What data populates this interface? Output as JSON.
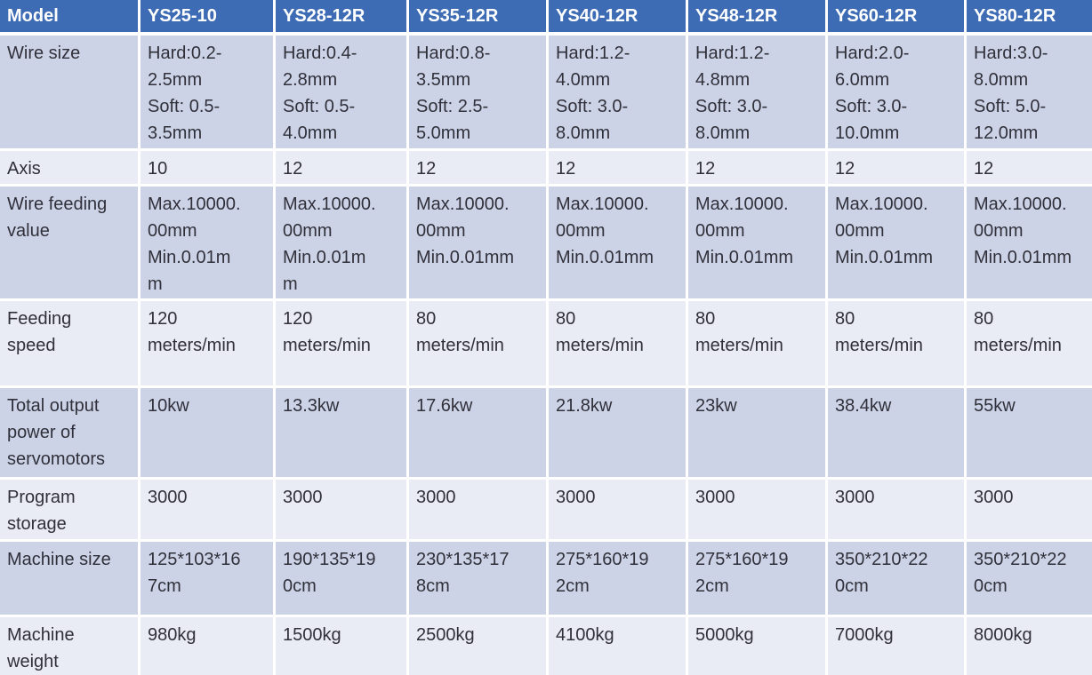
{
  "table": {
    "columns": [
      "Model",
      "YS25-10",
      "YS28-12R",
      "YS35-12R",
      "YS40-12R",
      "YS48-12R",
      "YS60-12R",
      "YS80-12R"
    ],
    "rows": [
      {
        "label": "Wire size",
        "values": [
          "Hard:0.2-\n2.5mm\nSoft: 0.5-\n3.5mm",
          "Hard:0.4-\n2.8mm\nSoft: 0.5-\n4.0mm",
          "Hard:0.8-\n3.5mm\nSoft: 2.5-\n5.0mm",
          "Hard:1.2-\n4.0mm\nSoft: 3.0-\n8.0mm",
          "Hard:1.2-\n4.8mm\nSoft: 3.0-\n8.0mm",
          "Hard:2.0-\n6.0mm\nSoft: 3.0-\n10.0mm",
          "Hard:3.0-\n8.0mm\nSoft: 5.0-\n12.0mm"
        ]
      },
      {
        "label": "Axis",
        "values": [
          "10",
          "12",
          "12",
          "12",
          "12",
          "12",
          "12"
        ]
      },
      {
        "label": "Wire feeding\nvalue",
        "values": [
          "Max.10000.\n00mm\nMin.0.01m\nm",
          "Max.10000.\n00mm\nMin.0.01m\nm",
          "Max.10000.\n00mm\nMin.0.01mm",
          "Max.10000.\n00mm\nMin.0.01mm",
          "Max.10000.\n00mm\nMin.0.01mm",
          "Max.10000.\n00mm\nMin.0.01mm",
          "Max.10000.\n00mm\nMin.0.01mm"
        ]
      },
      {
        "label": "Feeding\nspeed",
        "values": [
          "120\nmeters/min",
          "120\nmeters/min",
          "80\nmeters/min",
          "80\nmeters/min",
          "80\nmeters/min",
          "80\nmeters/min",
          "80\nmeters/min"
        ]
      },
      {
        "label": "Total output\npower of\nservomotors",
        "values": [
          "10kw",
          "13.3kw",
          "17.6kw",
          "21.8kw",
          "23kw",
          "38.4kw",
          "55kw"
        ]
      },
      {
        "label": "Program\nstorage",
        "values": [
          "3000",
          "3000",
          "3000",
          "3000",
          "3000",
          "3000",
          "3000"
        ]
      },
      {
        "label": "Machine size",
        "values": [
          "125*103*16\n7cm",
          "190*135*19\n0cm",
          "230*135*17\n8cm",
          "275*160*19\n2cm",
          "275*160*19\n2cm",
          "350*210*22\n0cm",
          "350*210*22\n0cm"
        ]
      },
      {
        "label": "Machine\nweight",
        "values": [
          "980kg",
          "1500kg",
          "2500kg",
          "4100kg",
          "5000kg",
          "7000kg",
          "8000kg"
        ]
      }
    ]
  },
  "colors": {
    "header_bg": "#3D6CB4",
    "header_text": "#FFFFFF",
    "row_band_dark": "#CDD3E7",
    "row_band_light": "#E9EBF5",
    "body_text": "#30303A",
    "grid": "#FFFFFF"
  }
}
